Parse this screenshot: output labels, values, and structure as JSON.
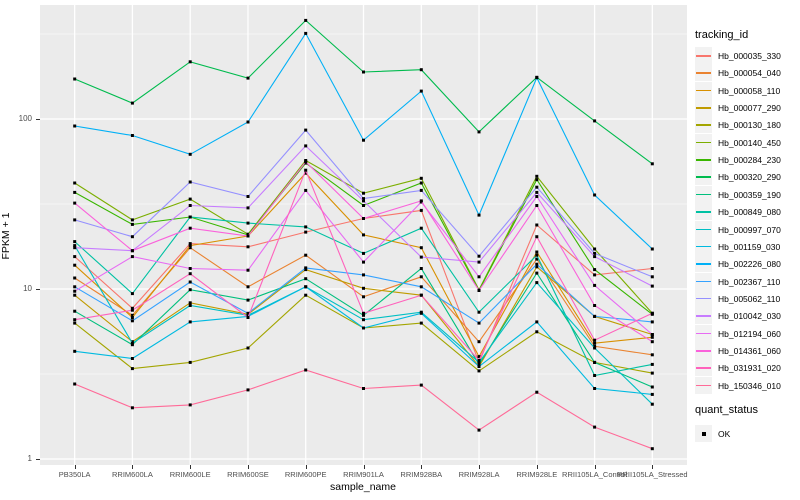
{
  "figure": {
    "background": "#FFFFFF",
    "panel_background": "#EBEBEB",
    "grid_color": "#FFFFFF",
    "tick_color": "#333333",
    "axis_text_color": "#4D4D4D",
    "point_color": "#000000"
  },
  "axes": {
    "x_label": "sample_name",
    "y_label": "FPKM + 1"
  },
  "legend": {
    "tracking_title": "tracking_id",
    "quant_title": "quant_status",
    "quant_items": [
      {
        "label": "OK",
        "marker": "black-square"
      }
    ]
  },
  "chart_data": {
    "type": "line",
    "title": "",
    "xlabel": "sample_name",
    "ylabel": "FPKM + 1",
    "y_scale": "log10",
    "y_ticks": [
      1,
      10,
      100
    ],
    "y_minor_ticks": [
      3.1623,
      31.623,
      316.23
    ],
    "ylim": [
      0.92,
      470
    ],
    "grid": "on",
    "legend_position": "right",
    "point_marker": "small-black-square",
    "x_categories": [
      "PB350LA",
      "RRIM600LA",
      "RRIM600LE",
      "RRIM600SE",
      "RRIM600PE",
      "RRIM901LA",
      "RRIM928BA",
      "RRIM928LA",
      "RRIM928LE",
      "RRII105LA_Control",
      "RRII105LA_Stressed"
    ],
    "series": [
      {
        "name": "Hb_000035_330",
        "color": "#F8766D",
        "values": [
          15.5,
          7.7,
          18.5,
          17.7,
          21.6,
          26,
          29,
          3.7,
          23.8,
          12.1,
          13.2
        ]
      },
      {
        "name": "Hb_000054_040",
        "color": "#EA8331",
        "values": [
          11.6,
          7,
          17.5,
          10.3,
          15.8,
          9,
          11.8,
          4.9,
          15,
          4.6,
          4.1
        ]
      },
      {
        "name": "Hb_000058_110",
        "color": "#D89000",
        "values": [
          13.8,
          6.8,
          18,
          20.5,
          48,
          20.8,
          17.5,
          4,
          16.5,
          4.8,
          5.2
        ]
      },
      {
        "name": "Hb_000077_290",
        "color": "#C09B00",
        "values": [
          9.2,
          4.9,
          8.3,
          7.1,
          13,
          10.1,
          9.2,
          3.5,
          13.5,
          6.9,
          5.4
        ]
      },
      {
        "name": "Hb_000130_180",
        "color": "#A3A500",
        "values": [
          6.3,
          3.4,
          3.7,
          4.5,
          9.2,
          5.9,
          6.3,
          3.3,
          5.6,
          3.7,
          3.2
        ]
      },
      {
        "name": "Hb_000140_450",
        "color": "#7CAE00",
        "values": [
          42,
          25.5,
          33.8,
          21,
          57,
          36.6,
          44.8,
          9.9,
          46,
          17.2,
          7.2
        ]
      },
      {
        "name": "Hb_000284_230",
        "color": "#39B600",
        "values": [
          37,
          24,
          26.5,
          20.8,
          55,
          31,
          42,
          9.8,
          44,
          13,
          7.1
        ]
      },
      {
        "name": "Hb_000320_290",
        "color": "#00BB4E",
        "values": [
          172,
          124,
          217,
          174,
          380,
          189,
          195,
          84,
          176,
          97.5,
          54.5
        ]
      },
      {
        "name": "Hb_000359_190",
        "color": "#00BF7D",
        "values": [
          7.4,
          4.7,
          9.9,
          8.6,
          11.5,
          7,
          13.2,
          3.6,
          12.4,
          3.7,
          2.65
        ]
      },
      {
        "name": "Hb_000849_080",
        "color": "#00C1A3",
        "values": [
          19,
          9.4,
          26.5,
          24.4,
          23.2,
          16.2,
          22.8,
          7.3,
          15.8,
          3.1,
          3.6
        ]
      },
      {
        "name": "Hb_000997_070",
        "color": "#00BFC4",
        "values": [
          18,
          4.8,
          8,
          7,
          10.3,
          6.6,
          7.3,
          3.7,
          10.9,
          4.5,
          2.1
        ]
      },
      {
        "name": "Hb_001159_030",
        "color": "#00BAE0",
        "values": [
          4.3,
          3.9,
          6.4,
          6.9,
          10.3,
          5.9,
          7.2,
          3.5,
          6.4,
          2.6,
          2.4
        ]
      },
      {
        "name": "Hb_002226_080",
        "color": "#00B0F6",
        "values": [
          91,
          80,
          62,
          96,
          319,
          75,
          146,
          27.2,
          175,
          35.7,
          17.2
        ]
      },
      {
        "name": "Hb_002367_110",
        "color": "#35A2FF",
        "values": [
          10.3,
          6.5,
          11,
          7.2,
          13.3,
          12.1,
          10.3,
          6.3,
          14,
          6.9,
          6.4
        ]
      },
      {
        "name": "Hb_005062_110",
        "color": "#9590FF",
        "values": [
          25.5,
          20.3,
          42.6,
          35,
          86,
          34,
          38,
          15.6,
          39.7,
          16.2,
          11.8
        ]
      },
      {
        "name": "Hb_010042_030",
        "color": "#C77CFF",
        "values": [
          17.5,
          16.8,
          31,
          30,
          69.5,
          33,
          15.4,
          14.4,
          37,
          15.5,
          10.4
        ]
      },
      {
        "name": "Hb_012194_060",
        "color": "#E76BF3",
        "values": [
          9.7,
          15.5,
          13.2,
          12.9,
          38,
          14.4,
          32.5,
          11.8,
          35,
          10.5,
          5.4
        ]
      },
      {
        "name": "Hb_014361_060",
        "color": "#FA62DB",
        "values": [
          32,
          16.8,
          22.8,
          20.5,
          56,
          26,
          33,
          9.8,
          31,
          8,
          4.9
        ]
      },
      {
        "name": "Hb_031931_020",
        "color": "#FF62BC",
        "values": [
          6.6,
          7.5,
          12.3,
          6.8,
          50,
          7.2,
          9.2,
          3.8,
          20.3,
          5,
          7.2
        ]
      },
      {
        "name": "Hb_150346_010",
        "color": "#FF6A98",
        "values": [
          2.76,
          2,
          2.08,
          2.55,
          3.34,
          2.6,
          2.72,
          1.48,
          2.47,
          1.54,
          1.15
        ]
      }
    ]
  }
}
